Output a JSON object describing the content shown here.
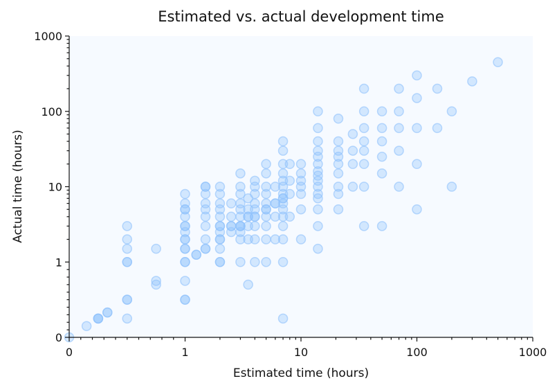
{
  "chart_data": {
    "type": "scatter",
    "title": "Estimated vs. actual development time",
    "xlabel": "Estimated time (hours)",
    "ylabel": "Actual time (hours)",
    "xscale": "symlog",
    "yscale": "symlog",
    "xlim": [
      0,
      1000
    ],
    "ylim": [
      0,
      1000
    ],
    "xticks": [
      "0",
      "1",
      "10",
      "100",
      "1000"
    ],
    "yticks": [
      "0",
      "1",
      "10",
      "100",
      "1000"
    ],
    "grid": false,
    "marker_color": "#90c2fb",
    "background_color": "#f6faff",
    "points": [
      [
        0,
        0
      ],
      [
        0.15,
        0.15
      ],
      [
        0.25,
        0.25
      ],
      [
        0.25,
        0.25
      ],
      [
        0.25,
        0.25
      ],
      [
        0.33,
        0.33
      ],
      [
        0.33,
        0.33
      ],
      [
        0.5,
        0.25
      ],
      [
        0.5,
        0.5
      ],
      [
        0.5,
        0.5
      ],
      [
        0.5,
        1
      ],
      [
        0.5,
        1
      ],
      [
        0.5,
        1.5
      ],
      [
        0.5,
        2
      ],
      [
        0.5,
        3
      ],
      [
        0.75,
        0.75
      ],
      [
        0.75,
        0.7
      ],
      [
        0.75,
        1.5
      ],
      [
        1,
        0.5
      ],
      [
        1,
        0.5
      ],
      [
        1,
        0.75
      ],
      [
        1,
        1
      ],
      [
        1,
        1
      ],
      [
        1,
        1.5
      ],
      [
        1,
        1.5
      ],
      [
        1,
        2
      ],
      [
        1,
        2
      ],
      [
        1,
        2.5
      ],
      [
        1,
        3
      ],
      [
        1,
        3
      ],
      [
        1,
        4
      ],
      [
        1,
        5
      ],
      [
        1,
        5
      ],
      [
        1,
        6
      ],
      [
        1,
        8
      ],
      [
        1.25,
        1.25
      ],
      [
        1.25,
        1.25
      ],
      [
        1.5,
        1.5
      ],
      [
        1.5,
        1.5
      ],
      [
        1.5,
        2
      ],
      [
        1.5,
        3
      ],
      [
        1.5,
        4
      ],
      [
        1.5,
        5
      ],
      [
        1.5,
        6
      ],
      [
        1.5,
        8
      ],
      [
        1.5,
        10
      ],
      [
        1.5,
        10
      ],
      [
        2,
        1
      ],
      [
        2,
        1
      ],
      [
        2,
        1.5
      ],
      [
        2,
        2
      ],
      [
        2,
        2
      ],
      [
        2,
        2.5
      ],
      [
        2,
        3
      ],
      [
        2,
        3
      ],
      [
        2,
        4
      ],
      [
        2,
        5
      ],
      [
        2,
        6
      ],
      [
        2,
        8
      ],
      [
        2,
        10
      ],
      [
        2.5,
        2.5
      ],
      [
        2.5,
        3
      ],
      [
        2.5,
        3
      ],
      [
        2.5,
        4
      ],
      [
        2.5,
        6
      ],
      [
        3,
        1
      ],
      [
        3,
        2
      ],
      [
        3,
        2.5
      ],
      [
        3,
        3
      ],
      [
        3,
        3
      ],
      [
        3,
        3
      ],
      [
        3,
        4
      ],
      [
        3,
        5
      ],
      [
        3,
        6
      ],
      [
        3,
        8
      ],
      [
        3,
        10
      ],
      [
        3,
        15
      ],
      [
        3.5,
        0.7
      ],
      [
        3.5,
        2
      ],
      [
        3.5,
        3
      ],
      [
        3.5,
        4
      ],
      [
        3.5,
        4
      ],
      [
        3.5,
        5
      ],
      [
        3.5,
        7
      ],
      [
        4,
        1
      ],
      [
        4,
        2
      ],
      [
        4,
        3
      ],
      [
        4,
        4
      ],
      [
        4,
        4
      ],
      [
        4,
        5
      ],
      [
        4,
        6
      ],
      [
        4,
        8
      ],
      [
        4,
        10
      ],
      [
        4,
        12
      ],
      [
        5,
        1
      ],
      [
        5,
        2
      ],
      [
        5,
        3
      ],
      [
        5,
        4
      ],
      [
        5,
        5
      ],
      [
        5,
        5
      ],
      [
        5,
        6
      ],
      [
        5,
        8
      ],
      [
        5,
        10
      ],
      [
        5,
        15
      ],
      [
        5,
        20
      ],
      [
        6,
        2
      ],
      [
        6,
        4
      ],
      [
        6,
        6
      ],
      [
        6,
        6
      ],
      [
        6,
        10
      ],
      [
        7,
        0.25
      ],
      [
        7,
        1
      ],
      [
        7,
        2
      ],
      [
        7,
        3
      ],
      [
        7,
        4
      ],
      [
        7,
        5
      ],
      [
        7,
        6
      ],
      [
        7,
        7
      ],
      [
        7,
        7
      ],
      [
        7,
        8
      ],
      [
        7,
        10
      ],
      [
        7,
        12
      ],
      [
        7,
        15
      ],
      [
        7,
        20
      ],
      [
        7,
        30
      ],
      [
        7,
        40
      ],
      [
        8,
        4
      ],
      [
        8,
        8
      ],
      [
        8,
        12
      ],
      [
        8,
        20
      ],
      [
        10,
        2
      ],
      [
        10,
        5
      ],
      [
        10,
        8
      ],
      [
        10,
        10
      ],
      [
        10,
        12
      ],
      [
        10,
        15
      ],
      [
        10,
        20
      ],
      [
        14,
        1.5
      ],
      [
        14,
        3
      ],
      [
        14,
        5
      ],
      [
        14,
        7
      ],
      [
        14,
        8
      ],
      [
        14,
        10
      ],
      [
        14,
        12
      ],
      [
        14,
        14
      ],
      [
        14,
        16
      ],
      [
        14,
        20
      ],
      [
        14,
        25
      ],
      [
        14,
        30
      ],
      [
        14,
        40
      ],
      [
        14,
        60
      ],
      [
        14,
        100
      ],
      [
        21,
        5
      ],
      [
        21,
        8
      ],
      [
        21,
        10
      ],
      [
        21,
        15
      ],
      [
        21,
        20
      ],
      [
        21,
        25
      ],
      [
        21,
        30
      ],
      [
        21,
        40
      ],
      [
        21,
        80
      ],
      [
        28,
        10
      ],
      [
        28,
        20
      ],
      [
        28,
        30
      ],
      [
        28,
        50
      ],
      [
        35,
        3
      ],
      [
        35,
        10
      ],
      [
        35,
        20
      ],
      [
        35,
        30
      ],
      [
        35,
        40
      ],
      [
        35,
        60
      ],
      [
        35,
        100
      ],
      [
        35,
        200
      ],
      [
        50,
        3
      ],
      [
        50,
        15
      ],
      [
        50,
        25
      ],
      [
        50,
        40
      ],
      [
        50,
        60
      ],
      [
        50,
        100
      ],
      [
        70,
        10
      ],
      [
        70,
        30
      ],
      [
        70,
        60
      ],
      [
        70,
        100
      ],
      [
        70,
        200
      ],
      [
        100,
        5
      ],
      [
        100,
        20
      ],
      [
        100,
        60
      ],
      [
        100,
        150
      ],
      [
        100,
        300
      ],
      [
        150,
        60
      ],
      [
        150,
        200
      ],
      [
        200,
        10
      ],
      [
        200,
        100
      ],
      [
        300,
        250
      ],
      [
        500,
        450
      ]
    ]
  }
}
